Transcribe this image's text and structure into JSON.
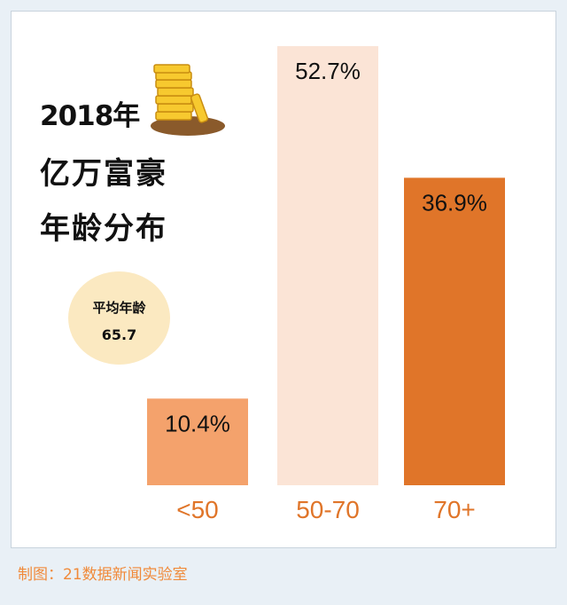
{
  "title": {
    "line1": "2018年",
    "line2": "亿万富豪",
    "line3": "年龄分布"
  },
  "average": {
    "label": "平均年龄",
    "value": "65.7"
  },
  "footer": "制图：21数据新闻实验室",
  "icons": {
    "coins": "gold-coin-stack-icon"
  },
  "chart_data": {
    "type": "bar",
    "categories": [
      "<50",
      "50-70",
      "70+"
    ],
    "values": [
      10.4,
      52.7,
      36.9
    ],
    "value_labels": [
      "10.4%",
      "52.7%",
      "36.9%"
    ],
    "colors": [
      "#f4a26c",
      "#fbe4d6",
      "#e07529"
    ],
    "label_color": "#e07529",
    "ylim": [
      0,
      55
    ]
  }
}
